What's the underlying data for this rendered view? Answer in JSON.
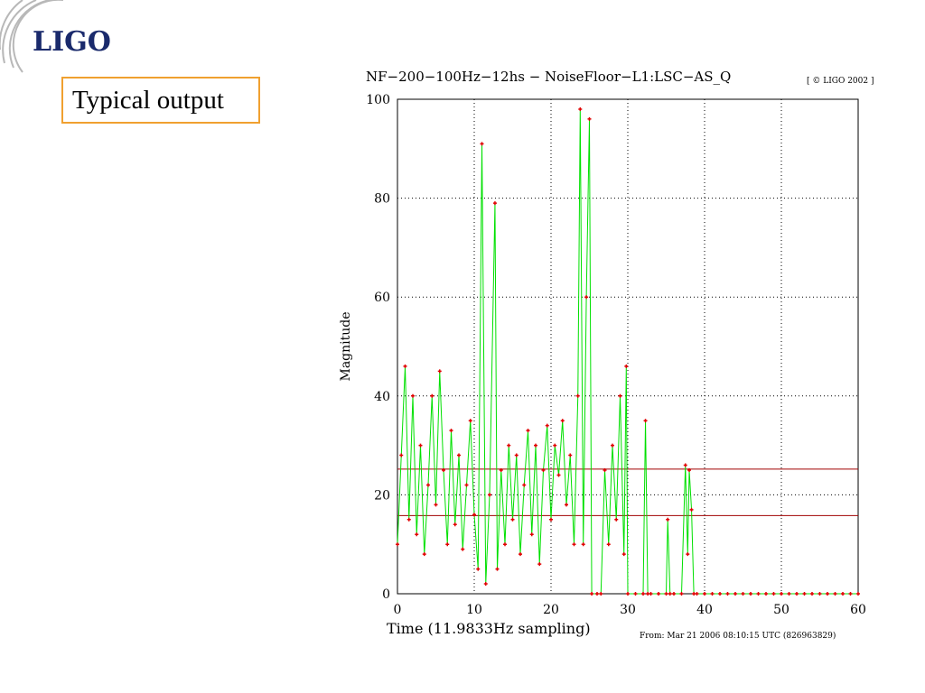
{
  "logo": "LIGO",
  "callout": "Typical output",
  "chart_data": {
    "type": "line",
    "title": "NF−200−100Hz−12hs − NoiseFloor−L1:LSC−AS_Q",
    "copyright": "[ © LIGO 2002 ]",
    "xlabel": "Time (11.9833Hz sampling)",
    "ylabel": "Magnitude",
    "footnote": "From: Mar 21 2006 08:10:15 UTC (826963829)",
    "xlim": [
      0,
      60
    ],
    "ylim": [
      0,
      100
    ],
    "xticks": [
      0,
      10,
      20,
      30,
      40,
      50,
      60
    ],
    "yticks": [
      0,
      20,
      40,
      60,
      80,
      100
    ],
    "grid": true,
    "series": [
      {
        "color": "#00e000",
        "marker_color": "#e00000",
        "x": [
          0,
          0.5,
          1,
          1.5,
          2,
          2.5,
          3,
          3.5,
          4,
          4.5,
          5,
          5.5,
          6,
          6.5,
          7,
          7.5,
          8,
          8.5,
          9,
          9.5,
          10,
          10.5,
          11,
          11.5,
          12,
          12.7,
          13,
          13.5,
          14,
          14.5,
          15,
          15.5,
          16,
          16.5,
          17,
          17.5,
          18,
          18.5,
          19,
          19.5,
          20,
          20.5,
          21,
          21.5,
          22,
          22.5,
          23,
          23.5,
          23.8,
          24.2,
          24.6,
          25,
          25.3,
          26,
          26.5,
          27,
          27.5,
          28,
          28.5,
          29,
          29.5,
          29.8,
          30,
          31,
          32,
          32.3,
          32.6,
          33,
          34,
          35,
          35.2,
          35.5,
          36,
          37,
          37.5,
          37.8,
          38,
          38.3,
          38.6,
          39,
          40,
          41,
          42,
          43,
          44,
          45,
          46,
          47,
          48,
          49,
          50,
          51,
          52,
          53,
          54,
          55,
          56,
          57,
          58,
          59,
          60
        ],
        "values": [
          10,
          28,
          46,
          15,
          40,
          12,
          30,
          8,
          22,
          40,
          18,
          45,
          25,
          10,
          33,
          14,
          28,
          9,
          22,
          35,
          16,
          5,
          91,
          2,
          20,
          79,
          5,
          25,
          10,
          30,
          15,
          28,
          8,
          22,
          33,
          12,
          30,
          6,
          25,
          34,
          15,
          30,
          24,
          35,
          18,
          28,
          10,
          40,
          98,
          10,
          60,
          96,
          0,
          0,
          0,
          25,
          10,
          30,
          15,
          40,
          8,
          46,
          0,
          0,
          0,
          35,
          0,
          0,
          0,
          0,
          15,
          0,
          0,
          0,
          26,
          8,
          25,
          17,
          0,
          0,
          0,
          0,
          0,
          0,
          0,
          0,
          0,
          0,
          0,
          0,
          0,
          0,
          0,
          0,
          0,
          0,
          0,
          0,
          0,
          0,
          0
        ]
      }
    ],
    "hlines": [
      {
        "value": 25.2,
        "color": "#a00000"
      },
      {
        "value": 15.8,
        "color": "#a00000"
      }
    ]
  }
}
